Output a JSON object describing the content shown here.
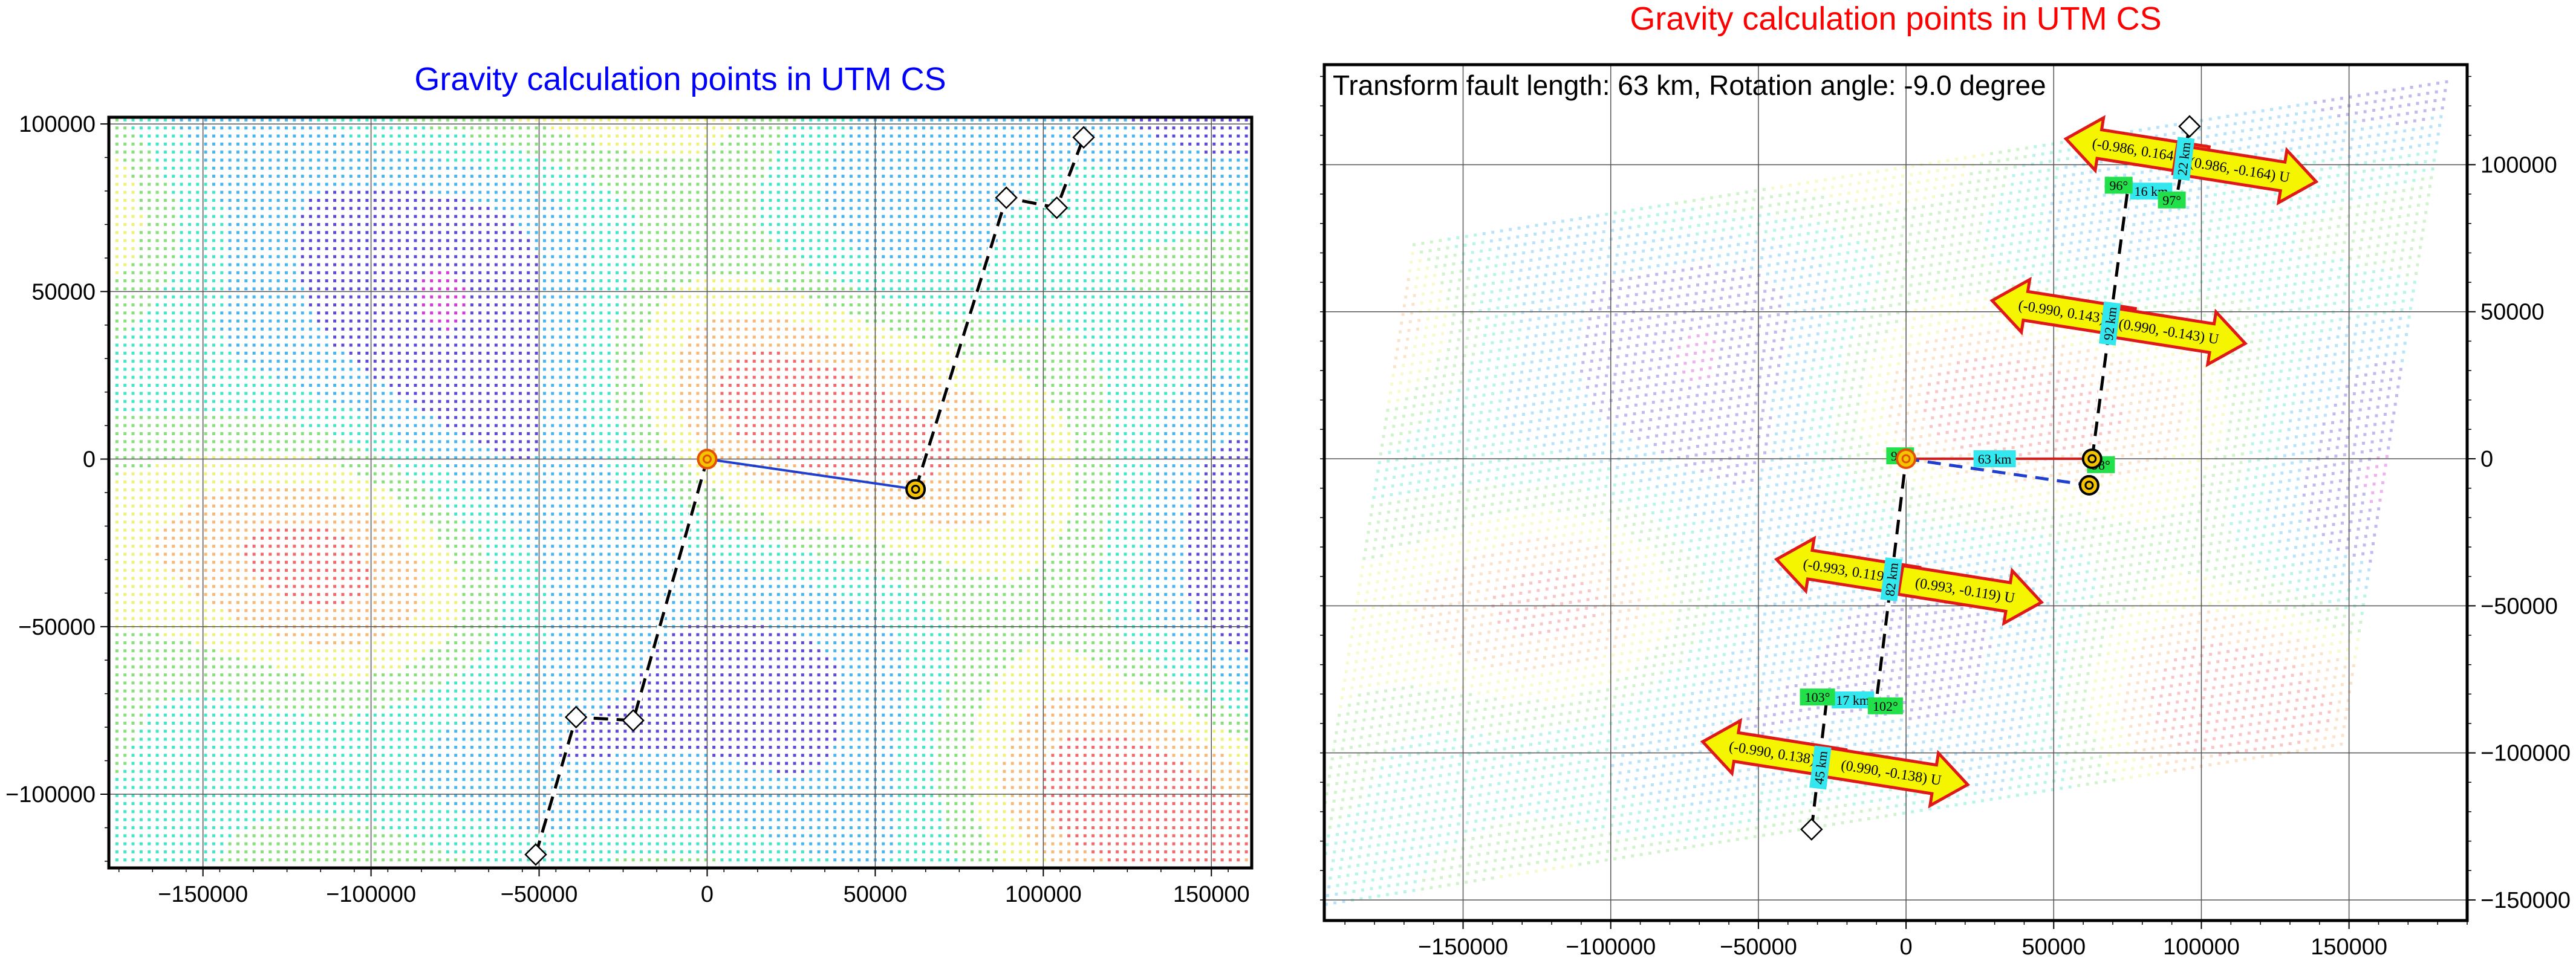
{
  "palette": [
    "#d23bd6",
    "#5b4bd6",
    "#49b6f0",
    "#44e6c8",
    "#88e07a",
    "#eef27a",
    "#f7b878",
    "#f36a6a"
  ],
  "chart_data": [
    {
      "type": "scatter",
      "title": "Gravity calculation points in UTM CS",
      "title_color": "#0000ff",
      "xlim": [
        -178000,
        162000
      ],
      "ylim": [
        -122000,
        102000
      ],
      "xticks": [
        -150000,
        -100000,
        -50000,
        0,
        50000,
        100000,
        150000
      ],
      "xtick_labels": [
        "−150000",
        "−100000",
        "−50000",
        "0",
        "50000",
        "100000",
        "150000"
      ],
      "yticks": [
        -100000,
        -50000,
        0,
        50000,
        100000
      ],
      "ytick_labels": [
        "−100000",
        "−50000",
        "0",
        "50000",
        "100000"
      ],
      "grid": true,
      "background": "gravity grid points colored by value (magenta, blue, cyan, green, yellow, orange, red)",
      "ridge_segments": [
        [
          [
            -51000,
            -118000
          ],
          [
            -39000,
            -77000
          ],
          [
            -22000,
            -78000
          ],
          [
            0,
            0
          ]
        ],
        [
          [
            62000,
            -9000
          ],
          [
            89000,
            78000
          ],
          [
            104000,
            75000
          ],
          [
            112000,
            96000
          ]
        ]
      ],
      "transform_fault": [
        [
          0,
          0
        ],
        [
          62000,
          -9000
        ]
      ],
      "markers": {
        "origin": [
          0,
          0
        ],
        "fault_end": [
          62000,
          -9000
        ],
        "diamonds": [
          [
            -51000,
            -118000
          ],
          [
            -39000,
            -77000
          ],
          [
            -22000,
            -78000
          ],
          [
            89000,
            78000
          ],
          [
            104000,
            75000
          ],
          [
            112000,
            96000
          ]
        ]
      }
    },
    {
      "type": "scatter",
      "title": "Gravity calculation points in UTM CS",
      "title_color": "#ff0000",
      "xlim": [
        -197000,
        190000
      ],
      "ylim": [
        -157000,
        134000
      ],
      "xticks": [
        -150000,
        -100000,
        -50000,
        0,
        50000,
        100000,
        150000
      ],
      "xtick_labels": [
        "−150000",
        "−100000",
        "−50000",
        "0",
        "50000",
        "100000",
        "150000"
      ],
      "yticks": [
        -150000,
        -100000,
        -50000,
        0,
        50000,
        100000
      ],
      "ytick_labels": [
        "−150000",
        "−100000",
        "−50000",
        "0",
        "50000",
        "100000"
      ],
      "grid": true,
      "annotation": "Transform fault length: 63 km,  Rotation angle: -9.0 degree",
      "rotation_deg": -9.0,
      "background": "rotated gravity grid points, faded colors",
      "ridge_segments": [
        [
          [
            -32000,
            -126000
          ],
          [
            -27000,
            -83000
          ],
          [
            -10000,
            -82000
          ],
          [
            0,
            0
          ]
        ],
        [
          [
            63000,
            0
          ],
          [
            75000,
            91000
          ],
          [
            92000,
            91000
          ],
          [
            96000,
            113000
          ]
        ]
      ],
      "fault_line": [
        [
          0,
          0
        ],
        [
          63000,
          0
        ]
      ],
      "fault_dashed": [
        [
          0,
          0
        ],
        [
          62000,
          -9000
        ]
      ],
      "markers": {
        "origin": [
          0,
          0
        ],
        "fault_end": [
          63000,
          0
        ],
        "fault_end_rotated": [
          62000,
          -9000
        ],
        "diamonds": [
          [
            -32000,
            -126000
          ],
          [
            96000,
            113000
          ]
        ]
      },
      "distance_labels": [
        {
          "text": "63 km",
          "x": 30000,
          "y": 0,
          "angle": 0
        },
        {
          "text": "82 km",
          "x": -5000,
          "y": -41000,
          "angle": 83
        },
        {
          "text": "17 km",
          "x": -18000,
          "y": -82000,
          "angle": 0
        },
        {
          "text": "45 km",
          "x": -29000,
          "y": -105000,
          "angle": 83
        },
        {
          "text": "92 km",
          "x": 69000,
          "y": 46000,
          "angle": 83
        },
        {
          "text": "16 km",
          "x": 83000,
          "y": 91000,
          "angle": 0
        },
        {
          "text": "22 km",
          "x": 94000,
          "y": 102000,
          "angle": 83
        }
      ],
      "angle_labels": [
        {
          "text": "97°",
          "x": -2000,
          "y": 1000
        },
        {
          "text": "98°",
          "x": 66000,
          "y": -2000
        },
        {
          "text": "103°",
          "x": -30000,
          "y": -81000
        },
        {
          "text": "102°",
          "x": -7000,
          "y": -84000
        },
        {
          "text": "96°",
          "x": 72000,
          "y": 93000
        },
        {
          "text": "97°",
          "x": 90000,
          "y": 88000
        }
      ],
      "arrows": [
        {
          "text": "(-0.986, 0.164) U",
          "dir": "left",
          "x": 78000,
          "y": 105000
        },
        {
          "text": "(0.986, -0.164) U",
          "dir": "right",
          "x": 115000,
          "y": 98000
        },
        {
          "text": "(-0.990, 0.143) U",
          "dir": "left",
          "x": 53000,
          "y": 50000
        },
        {
          "text": "(0.990, -0.143) U",
          "dir": "right",
          "x": 91000,
          "y": 43000
        },
        {
          "text": "(-0.993, 0.119) U",
          "dir": "left",
          "x": -20000,
          "y": -38000
        },
        {
          "text": "(0.993, -0.119) U",
          "dir": "right",
          "x": 22000,
          "y": -45000
        },
        {
          "text": "(-0.990, 0.138) U",
          "dir": "left",
          "x": -45000,
          "y": -100000
        },
        {
          "text": "(0.990, -0.138) U",
          "dir": "right",
          "x": -3000,
          "y": -107000
        }
      ]
    }
  ]
}
